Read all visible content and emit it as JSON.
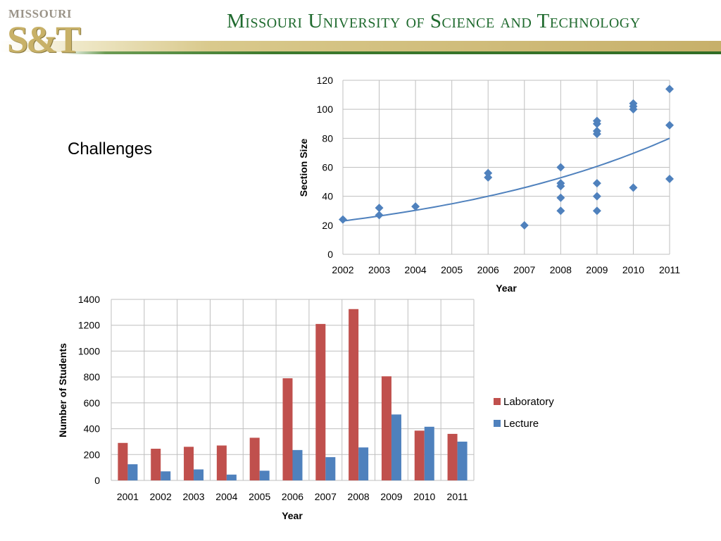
{
  "header": {
    "logo_top": "MISSOURI",
    "logo_main": "S&T",
    "title": "Missouri University of Science and Technology"
  },
  "slide": {
    "heading": "Challenges"
  },
  "colors": {
    "scatter": "#4f81bd",
    "laboratory": "#c0504d",
    "lecture": "#4f81bd",
    "grid": "#bfbfbf"
  },
  "chart_data": [
    {
      "type": "scatter",
      "title": "",
      "xlabel": "Year",
      "ylabel": "Section Size",
      "xlim": [
        2002,
        2011
      ],
      "ylim": [
        0,
        120
      ],
      "x_ticks": [
        "2002",
        "2003",
        "2004",
        "2005",
        "2006",
        "2007",
        "2008",
        "2009",
        "2010",
        "2011"
      ],
      "y_ticks": [
        "0",
        "20",
        "40",
        "60",
        "80",
        "100",
        "120"
      ],
      "grid": true,
      "points": [
        {
          "x": 2002,
          "y": 24
        },
        {
          "x": 2003,
          "y": 32
        },
        {
          "x": 2003,
          "y": 27
        },
        {
          "x": 2004,
          "y": 33
        },
        {
          "x": 2006,
          "y": 56
        },
        {
          "x": 2006,
          "y": 53
        },
        {
          "x": 2007,
          "y": 20
        },
        {
          "x": 2008,
          "y": 60
        },
        {
          "x": 2008,
          "y": 49
        },
        {
          "x": 2008,
          "y": 47
        },
        {
          "x": 2008,
          "y": 39
        },
        {
          "x": 2008,
          "y": 30
        },
        {
          "x": 2009,
          "y": 92
        },
        {
          "x": 2009,
          "y": 90
        },
        {
          "x": 2009,
          "y": 85
        },
        {
          "x": 2009,
          "y": 83
        },
        {
          "x": 2009,
          "y": 49
        },
        {
          "x": 2009,
          "y": 40
        },
        {
          "x": 2009,
          "y": 30
        },
        {
          "x": 2010,
          "y": 104
        },
        {
          "x": 2010,
          "y": 102
        },
        {
          "x": 2010,
          "y": 100
        },
        {
          "x": 2010,
          "y": 46
        },
        {
          "x": 2011,
          "y": 114
        },
        {
          "x": 2011,
          "y": 89
        },
        {
          "x": 2011,
          "y": 52
        }
      ],
      "trendline": {
        "type": "exponential",
        "start": [
          2002,
          23
        ],
        "end": [
          2011,
          80
        ]
      }
    },
    {
      "type": "bar",
      "title": "",
      "xlabel": "Year",
      "ylabel": "Number of Students",
      "ylim": [
        0,
        1400
      ],
      "y_ticks": [
        "0",
        "200",
        "400",
        "600",
        "800",
        "1000",
        "1200",
        "1400"
      ],
      "grid": true,
      "legend_position": "right",
      "categories": [
        "2001",
        "2002",
        "2003",
        "2004",
        "2005",
        "2006",
        "2007",
        "2008",
        "2009",
        "2010",
        "2011"
      ],
      "series": [
        {
          "name": "Laboratory",
          "values": [
            290,
            245,
            260,
            270,
            330,
            790,
            1210,
            1325,
            805,
            385,
            360
          ]
        },
        {
          "name": "Lecture",
          "values": [
            125,
            70,
            85,
            45,
            75,
            235,
            180,
            255,
            510,
            415,
            300
          ]
        }
      ]
    }
  ]
}
